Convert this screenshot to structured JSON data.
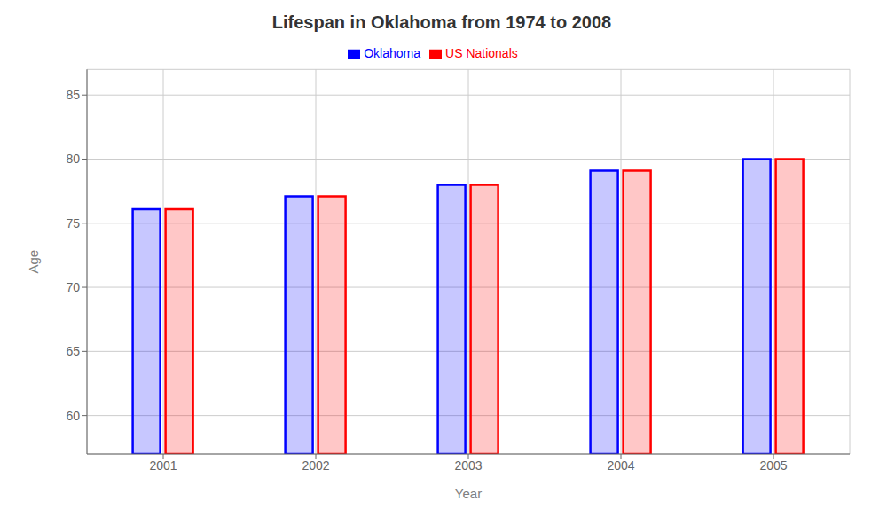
{
  "chart_data": {
    "type": "bar",
    "title": "Lifespan in Oklahoma from 1974 to 2008",
    "x_label": "Year",
    "y_label": "Age",
    "categories": [
      "2001",
      "2002",
      "2003",
      "2004",
      "2005"
    ],
    "series": [
      {
        "name": "Oklahoma",
        "color": "#0000FF",
        "values": [
          76.1,
          77.1,
          78.0,
          79.1,
          80.0
        ]
      },
      {
        "name": "US Nationals",
        "color": "#FF0000",
        "values": [
          76.1,
          77.1,
          78.0,
          79.1,
          80.0
        ]
      }
    ],
    "ylim": [
      57,
      87
    ],
    "yticks": [
      60,
      65,
      70,
      75,
      80,
      85
    ],
    "grid": true,
    "legend": "top"
  }
}
